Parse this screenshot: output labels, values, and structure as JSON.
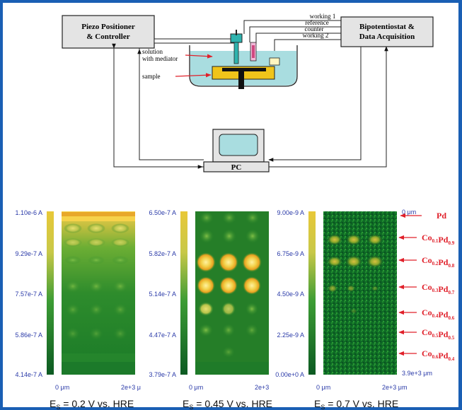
{
  "colors": {
    "frame": "#1a5fb4",
    "box_fill": "#e4e4e4",
    "solution": "#a9dde0",
    "sample": "#f0c41a",
    "arrow_red": "#e0202a",
    "label_red": "#e0202a",
    "axis_blue": "#2a3aa8",
    "map_dark": "#0c5a22",
    "map_mid": "#3f9a2c",
    "map_bright": "#f2d84a"
  },
  "setup": {
    "piezo_label": [
      "Piezo Positioner",
      "& Controller"
    ],
    "bipot_label": [
      "Bipotentiostat &",
      "Data Acquisition"
    ],
    "pc_label": "PC",
    "solution_label": [
      "solution",
      "with mediator"
    ],
    "sample_label": "sample",
    "wire_labels": [
      "working 1",
      "reference",
      "counter",
      "working 2"
    ]
  },
  "panels": [
    {
      "id": "left",
      "scale_labels": [
        "1.10e-6 A",
        "9.29e-7 A",
        "7.57e-7 A",
        "5.86e-7 A",
        "4.14e-7 A"
      ],
      "x_start": "0 μm",
      "x_end": "2e+3 μ",
      "caption": "E",
      "caption_sub": "S",
      "caption_rest": " = 0.2 V vs. HRE"
    },
    {
      "id": "middle",
      "scale_labels": [
        "6.50e-7 A",
        "5.82e-7 A",
        "5.14e-7 A",
        "4.47e-7 A",
        "3.79e-7 A"
      ],
      "x_start": "0 μm",
      "x_end": "2e+3",
      "caption": "E",
      "caption_sub": "S",
      "caption_rest": " = 0.45 V vs. HRE"
    },
    {
      "id": "right",
      "scale_labels": [
        "9.00e-9 A",
        "6.75e-9 A",
        "4.50e-9 A",
        "2.25e-9 A",
        "0.00e+0 A"
      ],
      "x_start": "0 μm",
      "x_end": "2e+3 μm",
      "y_top": "0 μm",
      "y_bottom": "3.9e+3 μm",
      "caption": "E",
      "caption_sub": "S",
      "caption_rest": " = 0.7 V vs. HRE"
    }
  ],
  "compositions": [
    {
      "main": "Pd",
      "parts": []
    },
    {
      "main": "",
      "parts": [
        [
          "Co",
          "0.1"
        ],
        [
          "Pd",
          "0.9"
        ]
      ]
    },
    {
      "main": "",
      "parts": [
        [
          "Co",
          "0.2"
        ],
        [
          "Pd",
          "0.8"
        ]
      ]
    },
    {
      "main": "",
      "parts": [
        [
          "Co",
          "0.3"
        ],
        [
          "Pd",
          "0.7"
        ]
      ]
    },
    {
      "main": "",
      "parts": [
        [
          "Co",
          "0.4"
        ],
        [
          "Pd",
          "0.6"
        ]
      ]
    },
    {
      "main": "",
      "parts": [
        [
          "Co",
          "0.5"
        ],
        [
          "Pd",
          "0.5"
        ]
      ]
    },
    {
      "main": "",
      "parts": [
        [
          "Co",
          "0.6"
        ],
        [
          "Pd",
          "0.4"
        ]
      ]
    }
  ]
}
